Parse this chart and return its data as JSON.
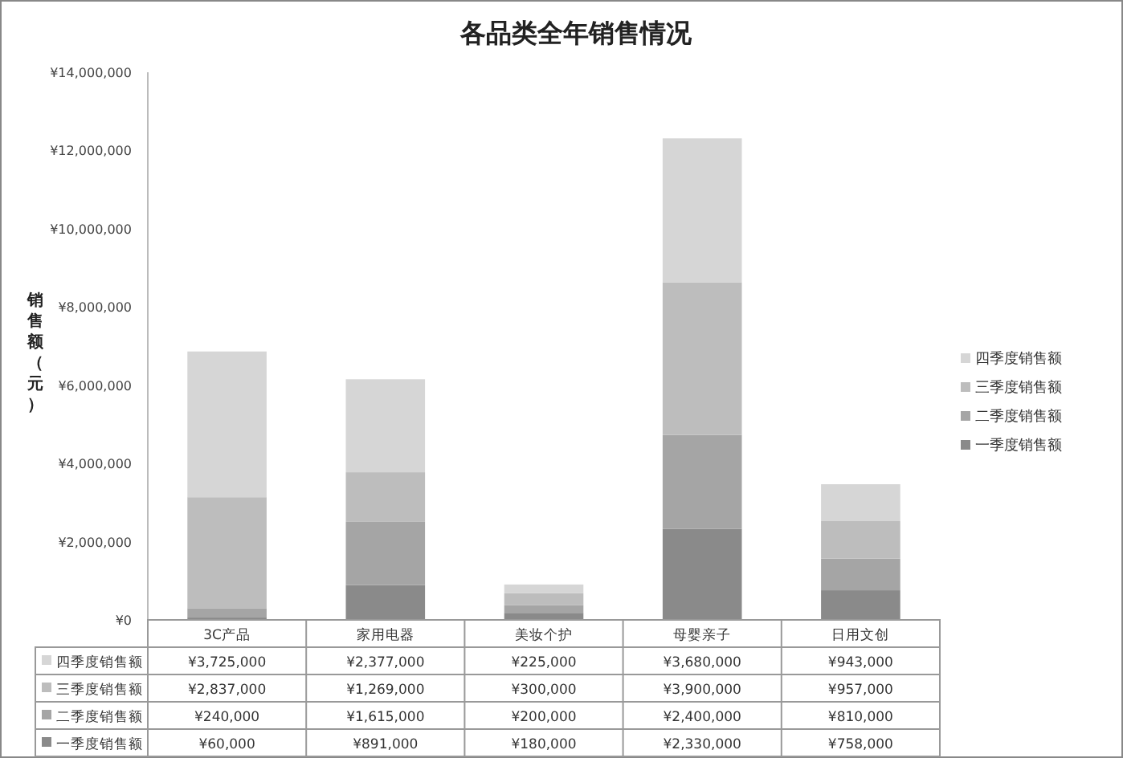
{
  "chart_data": {
    "type": "bar",
    "stacked": true,
    "title": "各品类全年销售情况",
    "ylabel": "销售额（元）",
    "categories": [
      "3C产品",
      "家用电器",
      "美妆个护",
      "母婴亲子",
      "日用文创"
    ],
    "series": [
      {
        "name": "一季度销售额",
        "color": "#8a8a8a",
        "values": [
          60000,
          891000,
          180000,
          2330000,
          758000
        ],
        "value_labels": [
          "¥60,000",
          "¥891,000",
          "¥180,000",
          "¥2,330,000",
          "¥758,000"
        ]
      },
      {
        "name": "二季度销售额",
        "color": "#a5a5a5",
        "values": [
          240000,
          1615000,
          200000,
          2400000,
          810000
        ],
        "value_labels": [
          "¥240,000",
          "¥1,615,000",
          "¥200,000",
          "¥2,400,000",
          "¥810,000"
        ]
      },
      {
        "name": "三季度销售额",
        "color": "#bdbdbd",
        "values": [
          2837000,
          1269000,
          300000,
          3900000,
          957000
        ],
        "value_labels": [
          "¥2,837,000",
          "¥1,269,000",
          "¥300,000",
          "¥3,900,000",
          "¥957,000"
        ]
      },
      {
        "name": "四季度销售额",
        "color": "#d6d6d6",
        "values": [
          3725000,
          2377000,
          225000,
          3680000,
          943000
        ],
        "value_labels": [
          "¥3,725,000",
          "¥2,377,000",
          "¥225,000",
          "¥3,680,000",
          "¥943,000"
        ]
      }
    ],
    "ylim": [
      0,
      14000000
    ],
    "yticks": [
      {
        "value": 0,
        "label": "¥0"
      },
      {
        "value": 2000000,
        "label": "¥2,000,000"
      },
      {
        "value": 4000000,
        "label": "¥4,000,000"
      },
      {
        "value": 6000000,
        "label": "¥6,000,000"
      },
      {
        "value": 8000000,
        "label": "¥8,000,000"
      },
      {
        "value": 10000000,
        "label": "¥10,000,000"
      },
      {
        "value": 12000000,
        "label": "¥12,000,000"
      },
      {
        "value": 14000000,
        "label": "¥14,000,000"
      }
    ],
    "legend": "right",
    "grid": false
  }
}
